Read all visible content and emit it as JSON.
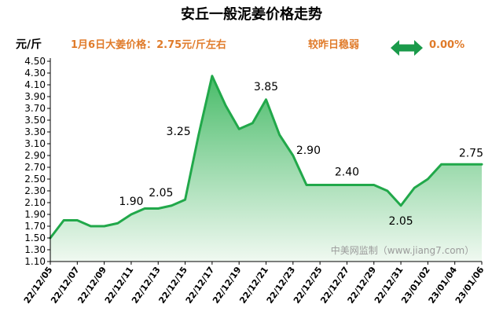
{
  "header": {
    "title": "安丘一般泥姜价格走势",
    "unit": "元/斤",
    "price_note": "1月6日大姜价格：2.75元/斤左右",
    "trend_label": "较昨日稳弱",
    "change_value": "0.00%",
    "arrow_icon": "double-arrow-icon",
    "arrow_color": "#1a9a4a",
    "accent_color": "#e07b2a"
  },
  "watermark": "中美网监制（www.jiang7.com）",
  "chart_data": {
    "type": "area",
    "title": "安丘一般泥姜价格走势",
    "ylabel": "元/斤",
    "xlabel": "",
    "ylim": [
      1.1,
      4.5
    ],
    "y_ticks": [
      "1.10",
      "1.30",
      "1.50",
      "1.70",
      "1.90",
      "2.10",
      "2.30",
      "2.50",
      "2.70",
      "2.90",
      "3.10",
      "3.30",
      "3.50",
      "3.70",
      "3.90",
      "4.10",
      "4.30",
      "4.50"
    ],
    "x_tick_labels": [
      "22/12/05",
      "22/12/07",
      "22/12/09",
      "22/12/11",
      "22/12/13",
      "22/12/15",
      "22/12/17",
      "22/12/19",
      "22/12/21",
      "22/12/23",
      "22/12/25",
      "22/12/27",
      "22/12/29",
      "22/12/31",
      "23/01/02",
      "23/01/04",
      "23/01/06"
    ],
    "x": [
      "22/12/05",
      "22/12/06",
      "22/12/07",
      "22/12/08",
      "22/12/09",
      "22/12/10",
      "22/12/11",
      "22/12/12",
      "22/12/13",
      "22/12/14",
      "22/12/15",
      "22/12/16",
      "22/12/17",
      "22/12/18",
      "22/12/19",
      "22/12/20",
      "22/12/21",
      "22/12/22",
      "22/12/23",
      "22/12/24",
      "22/12/25",
      "22/12/26",
      "22/12/27",
      "22/12/28",
      "22/12/29",
      "22/12/30",
      "22/12/31",
      "23/01/01",
      "23/01/02",
      "23/01/03",
      "23/01/04",
      "23/01/05",
      "23/01/06"
    ],
    "values": [
      1.5,
      1.8,
      1.8,
      1.7,
      1.7,
      1.75,
      1.9,
      2.0,
      2.0,
      2.05,
      2.15,
      3.25,
      4.25,
      3.75,
      3.35,
      3.45,
      3.85,
      3.25,
      2.9,
      2.4,
      2.4,
      2.4,
      2.4,
      2.4,
      2.4,
      2.3,
      2.05,
      2.35,
      2.5,
      2.75,
      2.75,
      2.75,
      2.75
    ],
    "data_labels": [
      {
        "index": 6,
        "text": "1.90"
      },
      {
        "index": 9,
        "text": "2.05"
      },
      {
        "index": 11,
        "text": "3.25"
      },
      {
        "index": 16,
        "text": "3.85"
      },
      {
        "index": 18,
        "text": "2.90"
      },
      {
        "index": 22,
        "text": "2.40"
      },
      {
        "index": 26,
        "text": "2.05"
      },
      {
        "index": 32,
        "text": "2.75"
      }
    ],
    "line_color": "#21a84a",
    "fill_top_color": "#3fb861",
    "fill_bottom_color": "#eef8ef",
    "grid": false
  }
}
